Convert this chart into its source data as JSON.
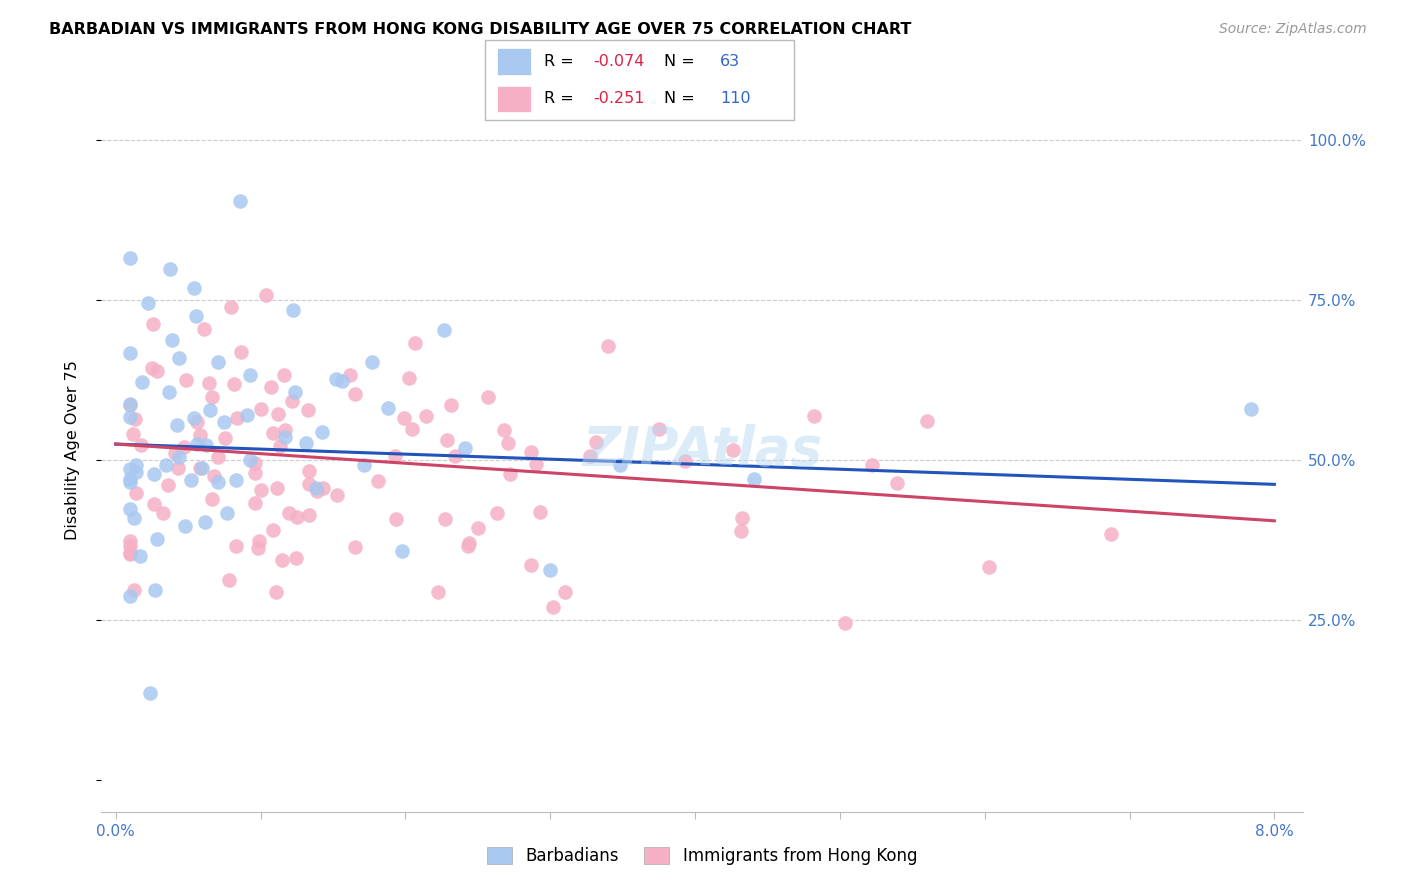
{
  "title": "BARBADIAN VS IMMIGRANTS FROM HONG KONG DISABILITY AGE OVER 75 CORRELATION CHART",
  "source": "Source: ZipAtlas.com",
  "ylabel": "Disability Age Over 75",
  "color_blue": "#a8c8f0",
  "color_pink": "#f5b0c5",
  "line_blue": "#2255bb",
  "line_pink": "#cc4466",
  "xlim": [
    -0.001,
    0.082
  ],
  "ylim": [
    -0.05,
    1.08
  ],
  "xtick_vals": [
    0.0,
    0.01,
    0.02,
    0.03,
    0.04,
    0.05,
    0.06,
    0.07,
    0.08
  ],
  "ytick_vals": [
    0.0,
    0.25,
    0.5,
    0.75,
    1.0
  ],
  "ytick_labels_right": [
    "",
    "25.0%",
    "50.0%",
    "75.0%",
    "100.0%"
  ],
  "blue_line_y0": 0.525,
  "blue_line_y1": 0.462,
  "pink_line_y0": 0.525,
  "pink_line_y1": 0.405,
  "watermark_text": "ZIPAtlas",
  "legend_R1_prefix": "R = ",
  "legend_R1_val": "-0.074",
  "legend_N1_prefix": "N = ",
  "legend_N1_val": "63",
  "legend_R2_prefix": "R =  ",
  "legend_R2_val": "-0.251",
  "legend_N2_prefix": "N = ",
  "legend_N2_val": "110",
  "legend_label_blue": "Barbadians",
  "legend_label_pink": "Immigrants from Hong Kong",
  "text_color_r": "#dd2244",
  "text_color_n": "#3366cc",
  "grid_color": "#cccccc",
  "title_fontsize": 11.5,
  "source_fontsize": 10,
  "tick_fontsize": 11,
  "legend_fontsize": 12,
  "scatter_size": 110,
  "scatter_alpha": 0.85
}
